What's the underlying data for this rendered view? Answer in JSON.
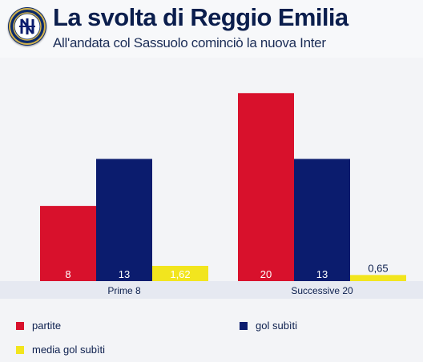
{
  "header": {
    "title": "La svolta di Reggio Emilia",
    "subtitle": "All'andata col Sassuolo cominciò la nuova Inter",
    "logo": "inter-crest-icon"
  },
  "colors": {
    "partite": "#d8112c",
    "gol_subiti": "#0b1c6e",
    "media_gol_subiti": "#f2e51e",
    "axis_band": "#e6e9f1",
    "text_dark": "#0b1e4d"
  },
  "chart_data": {
    "type": "bar",
    "title": "La svolta di Reggio Emilia",
    "subtitle": "All'andata col Sassuolo cominciò la nuova Inter",
    "categories": [
      "Prime 8",
      "Successive 20"
    ],
    "series": [
      {
        "name": "partite",
        "values": [
          8,
          20
        ],
        "labels": [
          "8",
          "20"
        ]
      },
      {
        "name": "gol subìti",
        "values": [
          13,
          13
        ],
        "labels": [
          "13",
          "13"
        ]
      },
      {
        "name": "media gol subìti",
        "values": [
          1.62,
          0.65
        ],
        "labels": [
          "1,62",
          "0,65"
        ]
      }
    ],
    "ylim": [
      0,
      21.3
    ],
    "grid": false,
    "legend_placement": "bottom"
  }
}
